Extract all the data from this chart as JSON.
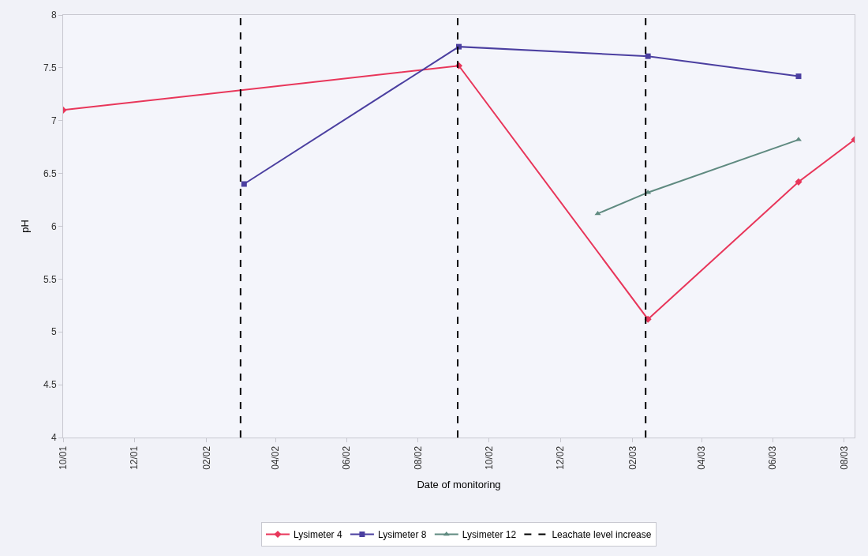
{
  "chart_data": {
    "type": "line",
    "xlabel": "Date of monitoring",
    "ylabel": "pH",
    "series": [
      {
        "name": "Lysimeter 4",
        "color": "#e8365a",
        "marker": "diamond",
        "x": [
          "2001-10-01",
          "2002-09-05",
          "2003-02-14",
          "2003-06-23",
          "2003-08-10"
        ],
        "values": [
          7.1,
          7.52,
          5.12,
          6.42,
          6.82
        ]
      },
      {
        "name": "Lysimeter 8",
        "color": "#4b3fa0",
        "marker": "square",
        "x": [
          "2002-03-05",
          "2002-09-05",
          "2003-02-14",
          "2003-06-23"
        ],
        "values": [
          6.4,
          7.7,
          7.61,
          7.42
        ]
      },
      {
        "name": "Lysimeter 12",
        "color": "#5f8a80",
        "marker": "triangle",
        "x": [
          "2003-01-02",
          "2003-02-14",
          "2003-06-23"
        ],
        "values": [
          6.12,
          6.32,
          6.82
        ]
      }
    ],
    "ref_lines": [
      {
        "axis": "x",
        "value": "2002-03-02",
        "label": "Leachate level increase",
        "color": "#000000",
        "line_style": "dashed"
      },
      {
        "axis": "x",
        "value": "2002-09-04",
        "color": "#000000",
        "line_style": "dashed"
      },
      {
        "axis": "x",
        "value": "2003-02-12",
        "color": "#000000",
        "line_style": "dashed"
      }
    ],
    "xlim": [
      "2001-10-01",
      "2003-08-10"
    ],
    "xticks": [
      {
        "value": "2001-10-01",
        "label": "10/01"
      },
      {
        "value": "2001-12-01",
        "label": "12/01"
      },
      {
        "value": "2002-02-01",
        "label": "02/02"
      },
      {
        "value": "2002-04-01",
        "label": "04/02"
      },
      {
        "value": "2002-06-01",
        "label": "06/02"
      },
      {
        "value": "2002-08-01",
        "label": "08/02"
      },
      {
        "value": "2002-10-01",
        "label": "10/02"
      },
      {
        "value": "2002-12-01",
        "label": "12/02"
      },
      {
        "value": "2003-02-01",
        "label": "02/03"
      },
      {
        "value": "2003-04-01",
        "label": "04/03"
      },
      {
        "value": "2003-06-01",
        "label": "06/03"
      },
      {
        "value": "2003-08-01",
        "label": "08/03"
      }
    ],
    "ylim": [
      4,
      8
    ],
    "yticks": [
      4,
      4.5,
      5,
      5.5,
      6,
      6.5,
      7,
      7.5,
      8
    ],
    "grid": false,
    "legend": "bottom"
  }
}
